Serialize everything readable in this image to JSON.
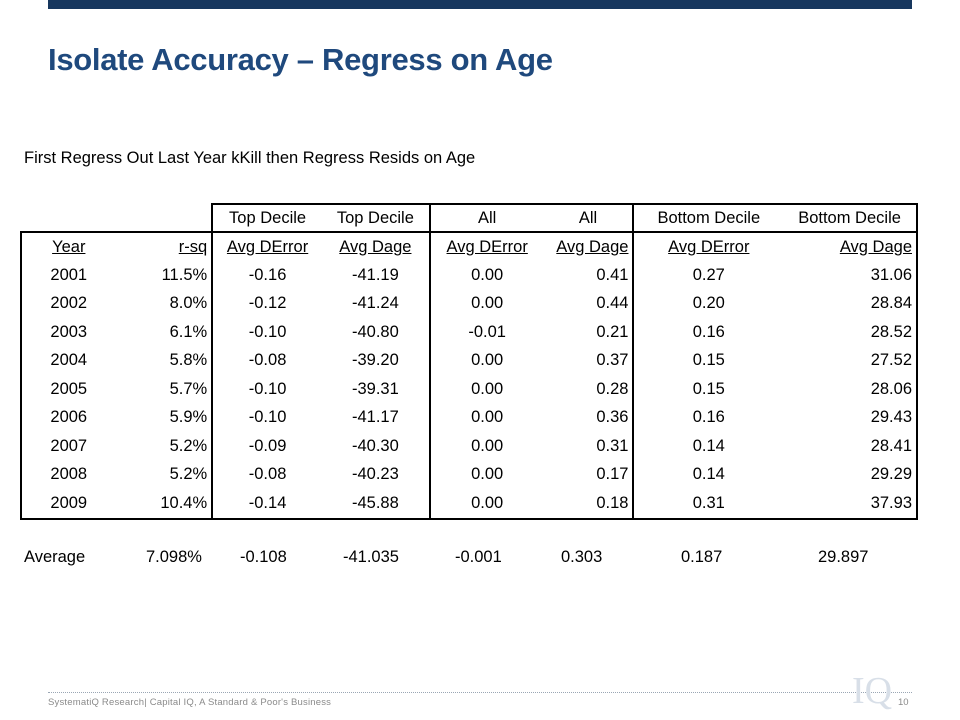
{
  "slide": {
    "title": "Isolate Accuracy – Regress on Age",
    "subtitle": "First Regress Out Last Year kKill then Regress Resids on Age",
    "footer": "SystematiQ Research| Capital IQ, A Standard & Poor's Business",
    "page_number": "10",
    "watermark": "IQ"
  },
  "table": {
    "group_headers": [
      "Top Decile",
      "Top Decile",
      "All",
      "All",
      "Bottom Decile",
      "Bottom Decile"
    ],
    "column_headers": [
      "Year",
      "r-sq",
      "Avg DError",
      "Avg Dage",
      "Avg DError",
      "Avg Dage",
      "Avg DError",
      "Avg Dage"
    ],
    "rows": [
      [
        "2001",
        "11.5%",
        "-0.16",
        "-41.19",
        "0.00",
        "0.41",
        "0.27",
        "31.06"
      ],
      [
        "2002",
        "8.0%",
        "-0.12",
        "-41.24",
        "0.00",
        "0.44",
        "0.20",
        "28.84"
      ],
      [
        "2003",
        "6.1%",
        "-0.10",
        "-40.80",
        "-0.01",
        "0.21",
        "0.16",
        "28.52"
      ],
      [
        "2004",
        "5.8%",
        "-0.08",
        "-39.20",
        "0.00",
        "0.37",
        "0.15",
        "27.52"
      ],
      [
        "2005",
        "5.7%",
        "-0.10",
        "-39.31",
        "0.00",
        "0.28",
        "0.15",
        "28.06"
      ],
      [
        "2006",
        "5.9%",
        "-0.10",
        "-41.17",
        "0.00",
        "0.36",
        "0.16",
        "29.43"
      ],
      [
        "2007",
        "5.2%",
        "-0.09",
        "-40.30",
        "0.00",
        "0.31",
        "0.14",
        "28.41"
      ],
      [
        "2008",
        "5.2%",
        "-0.08",
        "-40.23",
        "0.00",
        "0.17",
        "0.14",
        "29.29"
      ],
      [
        "2009",
        "10.4%",
        "-0.14",
        "-45.88",
        "0.00",
        "0.18",
        "0.31",
        "37.93"
      ]
    ],
    "average": {
      "label": "Average",
      "values": [
        "7.098%",
        "-0.108",
        "-41.035",
        "-0.001",
        "0.303",
        "0.187",
        "29.897"
      ]
    }
  }
}
